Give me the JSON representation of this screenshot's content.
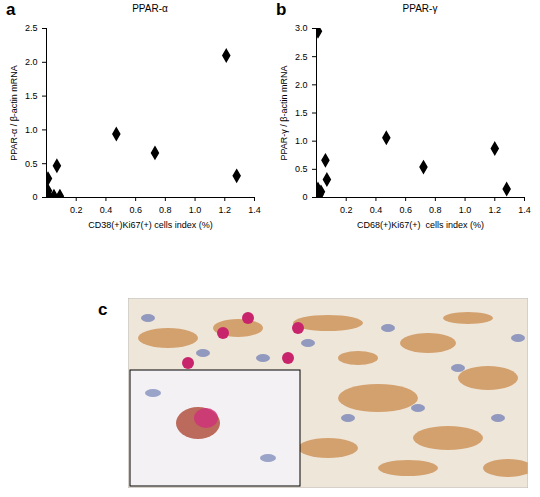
{
  "chart_data": [
    {
      "type": "scatter",
      "annotations": [
        "a"
      ],
      "title": "PPAR-α",
      "x_label": "CD38(+)Ki67(+) cells index (%)",
      "y_label": "PPAR-α / β-actin mRNA",
      "x": [
        0.01,
        0.01,
        0.01,
        0.01,
        0.05,
        0.09,
        0.07,
        0.47,
        0.73,
        1.21,
        1.28
      ],
      "values": [
        0.28,
        0.1,
        0.05,
        0.02,
        0.02,
        0.02,
        0.47,
        0.94,
        0.66,
        2.1,
        0.32
      ],
      "color": "#000000",
      "marker": "diamond",
      "xlim": [
        0,
        1.4
      ],
      "xticks": [
        0.2,
        0.4,
        0.6,
        0.8,
        {
          "value": 1.0,
          "label": "1.0"
        },
        1.2,
        1.4
      ],
      "ylim": [
        0,
        2.5
      ],
      "yticks": [
        0,
        0.5,
        {
          "value": 1.0,
          "label": "1.0"
        },
        1.5,
        {
          "value": 2.0,
          "label": "2.0"
        },
        2.5
      ]
    },
    {
      "type": "scatter",
      "annotations": [
        "b"
      ],
      "title": "PPAR-γ",
      "x_label": "CD68(+)Ki67(+)  cells index (%)",
      "y_label": "PPAR-γ / β-actin mRNA",
      "x": [
        0.01,
        0.02,
        0.01,
        0.06,
        0.07,
        0.47,
        0.72,
        1.2,
        1.28,
        0.03
      ],
      "values": [
        2.95,
        0.05,
        0.15,
        0.66,
        0.32,
        1.06,
        0.54,
        0.87,
        0.15,
        0.1
      ],
      "color": "#000000",
      "marker": "diamond",
      "xlim": [
        0,
        1.4
      ],
      "xticks": [
        0.2,
        0.4,
        0.6,
        0.8,
        {
          "value": 1.0,
          "label": "1.0"
        },
        1.2,
        1.4
      ],
      "ylim": [
        0,
        3.0
      ],
      "yticks": [
        0,
        0.5,
        {
          "value": 1.0,
          "label": "1.0"
        },
        1.5,
        {
          "value": 2.0,
          "label": "2.0"
        },
        2.5,
        {
          "value": 3.0,
          "label": "3.0"
        }
      ]
    }
  ],
  "image_panel": {
    "label": "c"
  }
}
